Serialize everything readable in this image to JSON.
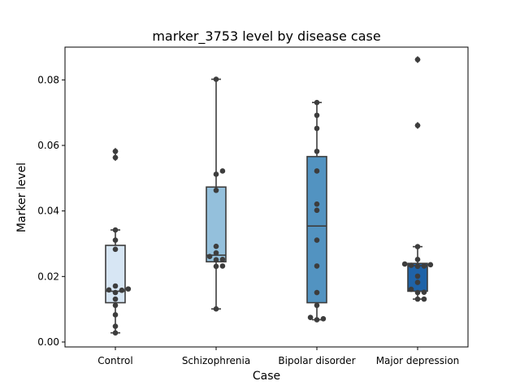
{
  "chart_data": {
    "type": "box",
    "title": "marker_3753 level by disease case",
    "xlabel": "Case",
    "ylabel": "Marker level",
    "ylim": [
      -0.0015,
      0.09
    ],
    "yticks": [
      0.0,
      0.02,
      0.04,
      0.06,
      0.08
    ],
    "ytick_labels": [
      "0.00",
      "0.02",
      "0.04",
      "0.06",
      "0.08"
    ],
    "grid": false,
    "categories": [
      "Control",
      "Schizophrenia",
      "Bipolar disorder",
      "Major depression"
    ],
    "colors": [
      "#d7e6f4",
      "#94c0dc",
      "#5293c1",
      "#1f63a8"
    ],
    "boxes": [
      {
        "q1": 0.012,
        "median": 0.0155,
        "q3": 0.0295,
        "whisker_low": 0.0028,
        "whisker_high": 0.0342,
        "outliers": [
          0.0563,
          0.0582
        ]
      },
      {
        "q1": 0.0245,
        "median": 0.0265,
        "q3": 0.0473,
        "whisker_low": 0.0101,
        "whisker_high": 0.0802,
        "outliers": []
      },
      {
        "q1": 0.012,
        "median": 0.0354,
        "q3": 0.0566,
        "whisker_low": 0.0068,
        "whisker_high": 0.0731,
        "outliers": []
      },
      {
        "q1": 0.0155,
        "median": 0.0233,
        "q3": 0.024,
        "whisker_low": 0.0131,
        "whisker_high": 0.0291,
        "outliers": [
          0.0661,
          0.0862
        ]
      }
    ],
    "points": [
      [
        0.0582,
        0.0563,
        0.0342,
        0.0311,
        0.0283,
        0.0171,
        0.0162,
        0.0159,
        0.0158,
        0.0151,
        0.0131,
        0.0112,
        0.0083,
        0.0048,
        0.0028
      ],
      [
        0.0802,
        0.0522,
        0.0512,
        0.0463,
        0.0292,
        0.0272,
        0.0261,
        0.0252,
        0.0251,
        0.0232,
        0.0231,
        0.0101
      ],
      [
        0.0731,
        0.0692,
        0.0652,
        0.0582,
        0.0522,
        0.0421,
        0.0402,
        0.0311,
        0.0232,
        0.0151,
        0.0112,
        0.0075,
        0.0071,
        0.0068
      ],
      [
        0.0862,
        0.0661,
        0.0291,
        0.0252,
        0.0238,
        0.0236,
        0.0234,
        0.0232,
        0.0231,
        0.0201,
        0.0182,
        0.0161,
        0.0152,
        0.0151,
        0.0131,
        0.0131
      ]
    ]
  }
}
